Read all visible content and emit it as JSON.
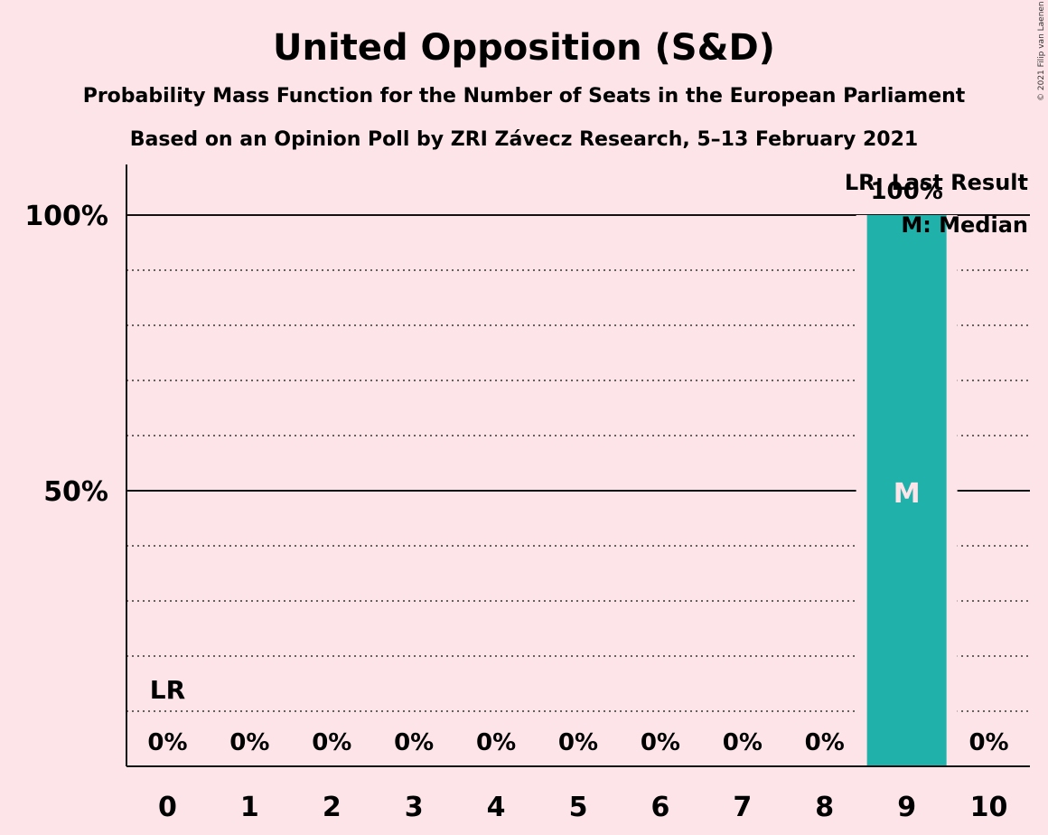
{
  "chart_data": {
    "type": "bar",
    "title": "United Opposition (S&D)",
    "subtitle": "Probability Mass Function for the Number of Seats in the European Parliament",
    "subtitle2": "Based on an Opinion Poll by ZRI Závecz Research, 5–13 February 2021",
    "copyright": "© 2021 Filip van Laenen",
    "categories": [
      "0",
      "1",
      "2",
      "3",
      "4",
      "5",
      "6",
      "7",
      "8",
      "9",
      "10"
    ],
    "values": [
      0,
      0,
      0,
      0,
      0,
      0,
      0,
      0,
      0,
      100,
      0
    ],
    "value_labels": [
      "0%",
      "0%",
      "0%",
      "0%",
      "0%",
      "0%",
      "0%",
      "0%",
      "0%",
      "100%",
      "0%"
    ],
    "y_ticks": [
      {
        "value": 50,
        "label": "50%"
      },
      {
        "value": 100,
        "label": "100%"
      }
    ],
    "ylim": [
      0,
      110
    ],
    "grid": "dotted every 10%, solid at 50% and 100%",
    "bar_color": "#20b2aa",
    "last_result": {
      "seat": "0",
      "label": "LR"
    },
    "median": {
      "seat": "9",
      "label": "M"
    },
    "legend": {
      "placement": "top-right",
      "items": [
        "LR: Last Result",
        "M: Median"
      ]
    }
  }
}
